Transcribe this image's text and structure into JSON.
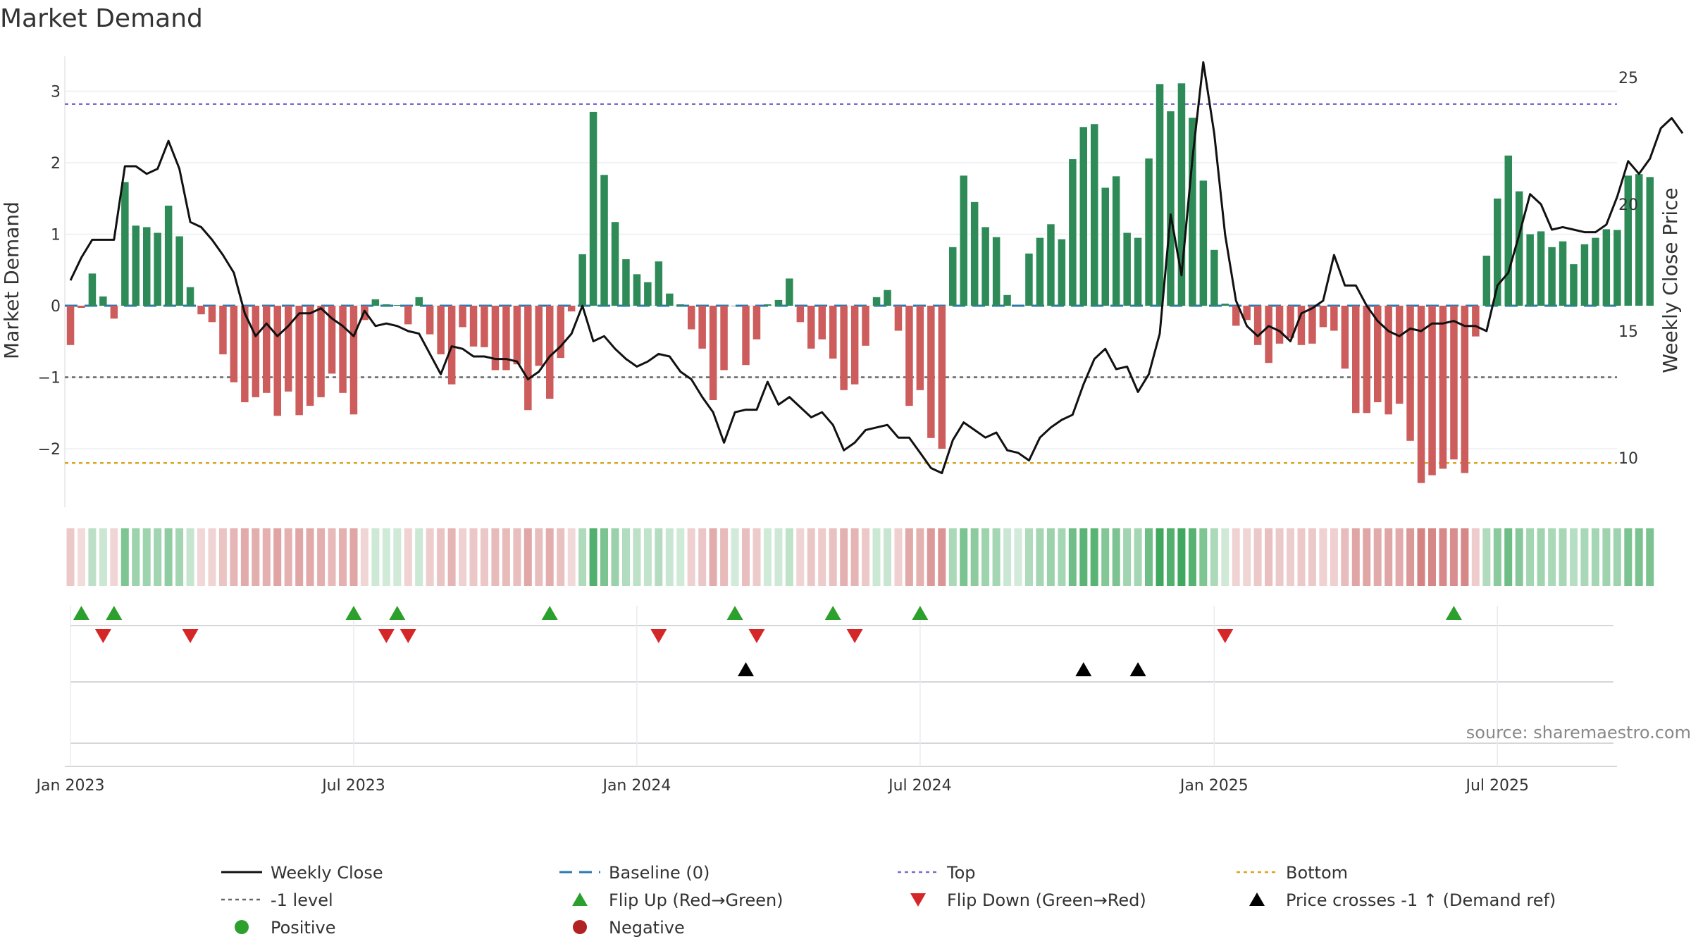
{
  "chart_data": {
    "type": "bar",
    "title": "Market Demand",
    "ylabel_left": "Market Demand",
    "ylabel_right": "Weekly Close Price",
    "ylim_left": [
      -2.75,
      3.5
    ],
    "ylim_right": [
      8.3,
      25.8
    ],
    "left_ticks": [
      3,
      2,
      1,
      0,
      -1,
      -2
    ],
    "left_tick_labels": [
      "3",
      "2",
      "1",
      "0",
      "−1",
      "−2"
    ],
    "right_ticks": [
      25,
      20,
      15,
      10
    ],
    "right_tick_labels": [
      "25",
      "20",
      "15",
      "10"
    ],
    "x_ticks": [
      {
        "week": 0,
        "label": "Jan 2023"
      },
      {
        "week": 26,
        "label": "Jul 2023"
      },
      {
        "week": 52,
        "label": "Jan 2024"
      },
      {
        "week": 78,
        "label": "Jul 2024"
      },
      {
        "week": 105,
        "label": "Jan 2025"
      },
      {
        "week": 131,
        "label": "Jul 2025"
      }
    ],
    "reference_lines": {
      "top": 2.82,
      "minus_one": -1,
      "bottom": -2.2,
      "baseline": 0
    },
    "demand": [
      -0.55,
      -0.03,
      0.45,
      0.13,
      -0.18,
      1.73,
      1.12,
      1.1,
      1.02,
      1.4,
      0.97,
      0.26,
      -0.12,
      -0.23,
      -0.68,
      -1.07,
      -1.35,
      -1.28,
      -1.22,
      -1.54,
      -1.2,
      -1.53,
      -1.4,
      -1.28,
      -0.95,
      -1.22,
      -1.52,
      -0.2,
      0.09,
      0.02,
      0.01,
      -0.26,
      0.12,
      -0.4,
      -0.68,
      -1.1,
      -0.3,
      -0.57,
      -0.58,
      -0.9,
      -0.9,
      -0.82,
      -1.46,
      -0.84,
      -1.3,
      -0.73,
      -0.08,
      0.72,
      2.71,
      1.83,
      1.17,
      0.65,
      0.44,
      0.33,
      0.62,
      0.17,
      0.02,
      -0.33,
      -0.6,
      -1.32,
      -0.9,
      0.0,
      -0.83,
      -0.47,
      0.02,
      0.08,
      0.38,
      -0.23,
      -0.6,
      -0.47,
      -0.74,
      -1.18,
      -1.1,
      -0.56,
      0.12,
      0.22,
      -0.35,
      -1.4,
      -1.18,
      -1.85,
      -2.0,
      0.82,
      1.82,
      1.45,
      1.1,
      0.96,
      0.15,
      0.0,
      0.73,
      0.95,
      1.14,
      0.93,
      2.05,
      2.5,
      2.54,
      1.65,
      1.81,
      1.02,
      0.95,
      2.06,
      3.1,
      2.72,
      3.11,
      2.63,
      1.75,
      0.78,
      0.03,
      -0.28,
      -0.2,
      -0.55,
      -0.8,
      -0.53,
      -0.45,
      -0.55,
      -0.53,
      -0.3,
      -0.35,
      -0.88,
      -1.5,
      -1.5,
      -1.35,
      -1.52,
      -1.37,
      -1.89,
      -2.48,
      -2.37,
      -2.28,
      -2.15,
      -2.34,
      -0.43,
      0.7,
      1.5,
      2.1,
      1.6,
      1.0,
      1.04,
      0.82,
      0.9,
      0.58,
      0.86,
      0.95,
      1.07,
      1.06,
      1.82,
      1.84,
      1.8
    ],
    "close": [
      17.0,
      17.9,
      18.6,
      18.6,
      18.6,
      21.5,
      21.5,
      21.2,
      21.4,
      22.5,
      21.4,
      19.3,
      19.1,
      18.6,
      18.0,
      17.3,
      15.7,
      14.8,
      15.3,
      14.8,
      15.2,
      15.7,
      15.7,
      15.9,
      15.5,
      15.2,
      14.8,
      15.8,
      15.2,
      15.3,
      15.2,
      15.0,
      14.9,
      14.1,
      13.3,
      14.4,
      14.3,
      14.0,
      14.0,
      13.9,
      13.9,
      13.8,
      13.1,
      13.4,
      14.0,
      14.4,
      14.9,
      16.0,
      14.6,
      14.8,
      14.3,
      13.9,
      13.6,
      13.8,
      14.1,
      14.0,
      13.4,
      13.1,
      12.4,
      11.8,
      10.6,
      11.8,
      11.9,
      11.9,
      13.0,
      12.1,
      12.4,
      12.0,
      11.6,
      11.8,
      11.3,
      10.3,
      10.6,
      11.1,
      11.2,
      11.3,
      10.8,
      10.8,
      10.2,
      9.6,
      9.4,
      10.7,
      11.4,
      11.1,
      10.8,
      11.0,
      10.3,
      10.2,
      9.9,
      10.8,
      11.2,
      11.5,
      11.7,
      12.9,
      13.9,
      14.3,
      13.5,
      13.6,
      12.6,
      13.3,
      14.9,
      19.6,
      17.2,
      21.8,
      25.6,
      22.8,
      18.8,
      16.2,
      15.2,
      14.8,
      15.2,
      15.0,
      14.6,
      15.7,
      15.9,
      16.2,
      18.0,
      16.8,
      16.8,
      16.0,
      15.4,
      15.0,
      14.8,
      15.1,
      15.0,
      15.3,
      15.3,
      15.4,
      15.2,
      15.2,
      15.0,
      16.8,
      17.3,
      18.8,
      20.4,
      20.0,
      19.0,
      19.1,
      19.0,
      18.9,
      18.9,
      19.2,
      20.3,
      21.7,
      21.2,
      21.8,
      23.0,
      23.4,
      22.8
    ],
    "flip_up_weeks": [
      1,
      4,
      26,
      30,
      44,
      61,
      70,
      78,
      127
    ],
    "flip_down_weeks": [
      3,
      11,
      29,
      31,
      54,
      63,
      72,
      106
    ],
    "price_cross_weeks": [
      62,
      93,
      98
    ],
    "series": [
      {
        "name": "Weekly Close",
        "color": "#111111"
      },
      {
        "name": "Market Demand positive",
        "color": "#2e8b57"
      },
      {
        "name": "Market Demand negative",
        "color": "#cd5c5c"
      }
    ],
    "legend": [
      {
        "key": "weekly_close",
        "label": "Weekly Close"
      },
      {
        "key": "baseline",
        "label": "Baseline (0)"
      },
      {
        "key": "top",
        "label": "Top"
      },
      {
        "key": "bottom",
        "label": "Bottom"
      },
      {
        "key": "minus_one",
        "label": "-1 level"
      },
      {
        "key": "flip_up",
        "label": "Flip Up (Red→Green)"
      },
      {
        "key": "flip_down",
        "label": "Flip Down (Green→Red)"
      },
      {
        "key": "price_cross",
        "label": "Price crosses -1 ↑ (Demand ref)"
      },
      {
        "key": "positive",
        "label": "Positive"
      },
      {
        "key": "negative",
        "label": "Negative"
      }
    ],
    "source": "source: sharemaestro.com"
  },
  "colors": {
    "positive": "#2e8b57",
    "negative": "#cd5c5c",
    "close": "#111111",
    "top": "#7b6fc9",
    "minus_one": "#666666",
    "bottom": "#daa520",
    "baseline": "#2a7ab0",
    "flip_up": "#2ca02c",
    "flip_down": "#d62728",
    "price_cross": "#000000",
    "positive_dot": "#2ca02c",
    "negative_dot": "#b22222"
  }
}
